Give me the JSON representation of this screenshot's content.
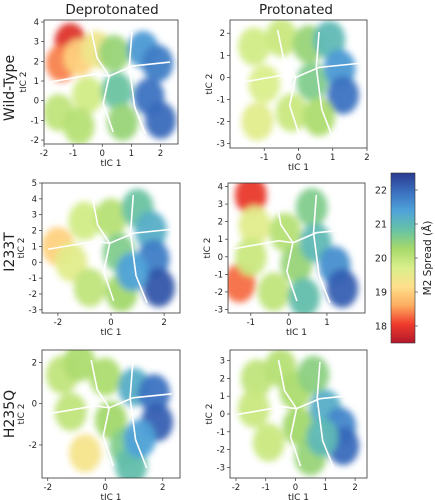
{
  "chart_data": {
    "type": "heatmap",
    "column_titles": [
      "Deprotonated",
      "Protonated"
    ],
    "row_labels": [
      "Wild-Type",
      "I233T",
      "H235Q"
    ],
    "colorbar": {
      "label": "M2 Spread (Å)",
      "range": [
        17.5,
        22.5
      ],
      "ticks": [
        "18",
        "19",
        "20",
        "21",
        "22"
      ],
      "tick_values": [
        18,
        19,
        20,
        21,
        22
      ],
      "colors": [
        "#b2182b",
        "#ef3b2c",
        "#fdae61",
        "#fee08b",
        "#d9ef8b",
        "#a6d96a",
        "#66c2a5",
        "#4fa3d9",
        "#3a6fbf",
        "#2b3a8f"
      ]
    },
    "panels": [
      {
        "row": "Wild-Type",
        "column": "Deprotonated",
        "xlabel": "tIC 1",
        "ylabel": "tIC 2",
        "xlim": [
          -2,
          2.6
        ],
        "ylim": [
          -2.2,
          4.1
        ],
        "xticks": [
          "-2",
          "-1",
          "0",
          "1",
          "2"
        ],
        "xtick_values": [
          -2,
          -1,
          0,
          1,
          2
        ],
        "yticks": [
          "-2",
          "-1",
          "0",
          "1",
          "2",
          "3",
          "4"
        ],
        "ytick_values": [
          -2,
          -1,
          0,
          1,
          2,
          3,
          4
        ],
        "clusters": [
          {
            "x": -1.1,
            "y": 3.0,
            "spread": 17.9
          },
          {
            "x": -1.4,
            "y": 1.9,
            "spread": 18.4
          },
          {
            "x": -0.8,
            "y": 2.2,
            "spread": 19.0
          },
          {
            "x": -0.5,
            "y": 0.3,
            "spread": 19.8
          },
          {
            "x": -1.5,
            "y": -0.6,
            "spread": 20.0
          },
          {
            "x": -0.2,
            "y": 2.6,
            "spread": 19.4
          },
          {
            "x": 0.4,
            "y": 2.4,
            "spread": 20.4
          },
          {
            "x": 0.5,
            "y": 0.5,
            "spread": 20.8
          },
          {
            "x": 0.7,
            "y": -1.1,
            "spread": 20.4
          },
          {
            "x": 1.4,
            "y": 2.6,
            "spread": 21.5
          },
          {
            "x": 1.9,
            "y": 1.9,
            "spread": 21.8
          },
          {
            "x": 1.6,
            "y": 0.2,
            "spread": 21.9
          },
          {
            "x": 2.0,
            "y": -1.0,
            "spread": 22.0
          },
          {
            "x": -0.8,
            "y": -1.3,
            "spread": 20.1
          }
        ]
      },
      {
        "row": "Wild-Type",
        "column": "Protonated",
        "xlabel": "tIC 1",
        "ylabel": "tIC 2",
        "xlim": [
          -2,
          2.0
        ],
        "ylim": [
          -3.2,
          2.6
        ],
        "xticks": [
          "-1",
          "0",
          "1",
          "2"
        ],
        "xtick_values": [
          -1,
          0,
          1,
          2
        ],
        "yticks": [
          "-3",
          "-2",
          "-1",
          "0",
          "1",
          "2"
        ],
        "ytick_values": [
          -3,
          -2,
          -1,
          0,
          1,
          2
        ],
        "clusters": [
          {
            "x": -1.3,
            "y": 1.4,
            "spread": 19.8
          },
          {
            "x": -0.5,
            "y": 1.8,
            "spread": 19.9
          },
          {
            "x": -1.0,
            "y": -0.3,
            "spread": 19.7
          },
          {
            "x": -1.2,
            "y": -2.0,
            "spread": 19.6
          },
          {
            "x": -0.2,
            "y": -1.6,
            "spread": 19.9
          },
          {
            "x": 0.3,
            "y": 1.5,
            "spread": 20.4
          },
          {
            "x": 0.4,
            "y": -0.2,
            "spread": 20.6
          },
          {
            "x": 0.9,
            "y": 1.7,
            "spread": 21.0
          },
          {
            "x": 1.2,
            "y": 0.4,
            "spread": 21.5
          },
          {
            "x": 1.3,
            "y": -0.8,
            "spread": 21.9
          },
          {
            "x": 0.6,
            "y": -1.8,
            "spread": 20.2
          }
        ]
      },
      {
        "row": "I233T",
        "column": "Deprotonated",
        "xlabel": "tIC 1",
        "ylabel": "tIC 2",
        "xlim": [
          -2.6,
          2.6
        ],
        "ylim": [
          -3.2,
          5.0
        ],
        "xticks": [
          "-2",
          "0",
          "2"
        ],
        "xtick_values": [
          -2,
          0,
          2
        ],
        "yticks": [
          "-3",
          "-2",
          "-1",
          "0",
          "1",
          "2",
          "3",
          "4",
          "5"
        ],
        "ytick_values": [
          -3,
          -2,
          -1,
          0,
          1,
          2,
          3,
          4,
          5
        ],
        "clusters": [
          {
            "x": -2.0,
            "y": 1.0,
            "spread": 19.0
          },
          {
            "x": -1.5,
            "y": 0.0,
            "spread": 19.6
          },
          {
            "x": -1.0,
            "y": 2.6,
            "spread": 19.8
          },
          {
            "x": -0.8,
            "y": -1.6,
            "spread": 20.0
          },
          {
            "x": 0.0,
            "y": 2.8,
            "spread": 20.1
          },
          {
            "x": 0.3,
            "y": 0.6,
            "spread": 20.6
          },
          {
            "x": 0.4,
            "y": -1.9,
            "spread": 20.3
          },
          {
            "x": 1.0,
            "y": 3.4,
            "spread": 20.8
          },
          {
            "x": 1.5,
            "y": 2.0,
            "spread": 21.2
          },
          {
            "x": 1.6,
            "y": 0.2,
            "spread": 21.8
          },
          {
            "x": 1.8,
            "y": -1.6,
            "spread": 22.2
          },
          {
            "x": 0.8,
            "y": -0.6,
            "spread": 21.4
          }
        ]
      },
      {
        "row": "I233T",
        "column": "Protonated",
        "xlabel": "tIC 1",
        "ylabel": "tIC 2",
        "xlim": [
          -1.6,
          2.0
        ],
        "ylim": [
          -3.2,
          4.2
        ],
        "xticks": [
          "-1",
          "0",
          "1"
        ],
        "xtick_values": [
          -1,
          0,
          1
        ],
        "yticks": [
          "-3",
          "-2",
          "-1",
          "0",
          "1",
          "2",
          "3",
          "4"
        ],
        "ytick_values": [
          -3,
          -2,
          -1,
          0,
          1,
          2,
          3,
          4
        ],
        "clusters": [
          {
            "x": -1.0,
            "y": 3.5,
            "spread": 18.0
          },
          {
            "x": -1.3,
            "y": -1.5,
            "spread": 18.3
          },
          {
            "x": -0.9,
            "y": 1.8,
            "spread": 19.6
          },
          {
            "x": -1.0,
            "y": 0.0,
            "spread": 19.9
          },
          {
            "x": -0.4,
            "y": -2.0,
            "spread": 20.0
          },
          {
            "x": -0.1,
            "y": 1.4,
            "spread": 20.1
          },
          {
            "x": 0.2,
            "y": -0.4,
            "spread": 20.4
          },
          {
            "x": 0.6,
            "y": 2.8,
            "spread": 20.6
          },
          {
            "x": 0.7,
            "y": 0.8,
            "spread": 21.0
          },
          {
            "x": 1.2,
            "y": -0.5,
            "spread": 21.6
          },
          {
            "x": 1.4,
            "y": -1.8,
            "spread": 22.1
          },
          {
            "x": 0.4,
            "y": -2.3,
            "spread": 20.9
          }
        ]
      },
      {
        "row": "H235Q",
        "column": "Deprotonated",
        "xlabel": "tIC 1",
        "ylabel": "tIC 2",
        "xlim": [
          -2.2,
          2.6
        ],
        "ylim": [
          -3.6,
          2.6
        ],
        "xticks": [
          "-2",
          "0",
          "2"
        ],
        "xtick_values": [
          -2,
          0,
          2
        ],
        "yticks": [
          "-2",
          "0",
          "2"
        ],
        "ytick_values": [
          -2,
          0,
          2
        ],
        "clusters": [
          {
            "x": -1.5,
            "y": 1.4,
            "spread": 20.0
          },
          {
            "x": -0.9,
            "y": 2.0,
            "spread": 20.2
          },
          {
            "x": -1.2,
            "y": -0.4,
            "spread": 20.0
          },
          {
            "x": -0.7,
            "y": -2.4,
            "spread": 19.3
          },
          {
            "x": 0.0,
            "y": 1.3,
            "spread": 20.2
          },
          {
            "x": 0.2,
            "y": -0.8,
            "spread": 20.3
          },
          {
            "x": 0.7,
            "y": -2.1,
            "spread": 20.6
          },
          {
            "x": 0.9,
            "y": -3.0,
            "spread": 20.9
          },
          {
            "x": 1.0,
            "y": 0.8,
            "spread": 21.2
          },
          {
            "x": 1.7,
            "y": 0.5,
            "spread": 21.9
          },
          {
            "x": 1.8,
            "y": -0.9,
            "spread": 22.1
          },
          {
            "x": 1.2,
            "y": -1.7,
            "spread": 21.4
          }
        ]
      },
      {
        "row": "H235Q",
        "column": "Protonated",
        "xlabel": "tIC 1",
        "ylabel": "tIC 2",
        "xlim": [
          -2.2,
          2.4
        ],
        "ylim": [
          -3.6,
          3.6
        ],
        "xticks": [
          "-2",
          "-1",
          "0",
          "1",
          "2"
        ],
        "xtick_values": [
          -2,
          -1,
          0,
          1,
          2
        ],
        "yticks": [
          "-3",
          "-2",
          "-1",
          "0",
          "1",
          "2",
          "3"
        ],
        "ytick_values": [
          -3,
          -2,
          -1,
          0,
          1,
          2,
          3
        ],
        "clusters": [
          {
            "x": -1.3,
            "y": 2.0,
            "spread": 20.0
          },
          {
            "x": -0.5,
            "y": 2.6,
            "spread": 20.1
          },
          {
            "x": -1.4,
            "y": 0.3,
            "spread": 19.9
          },
          {
            "x": -0.9,
            "y": -1.6,
            "spread": 19.9
          },
          {
            "x": 0.0,
            "y": 1.3,
            "spread": 20.2
          },
          {
            "x": 0.1,
            "y": -0.7,
            "spread": 20.3
          },
          {
            "x": 0.6,
            "y": 2.2,
            "spread": 20.5
          },
          {
            "x": 0.5,
            "y": -2.4,
            "spread": 20.4
          },
          {
            "x": 1.0,
            "y": 0.3,
            "spread": 21.2
          },
          {
            "x": 1.5,
            "y": -0.7,
            "spread": 21.7
          },
          {
            "x": 1.6,
            "y": -1.8,
            "spread": 22.0
          },
          {
            "x": 0.9,
            "y": -1.3,
            "spread": 21.0
          }
        ]
      }
    ]
  }
}
